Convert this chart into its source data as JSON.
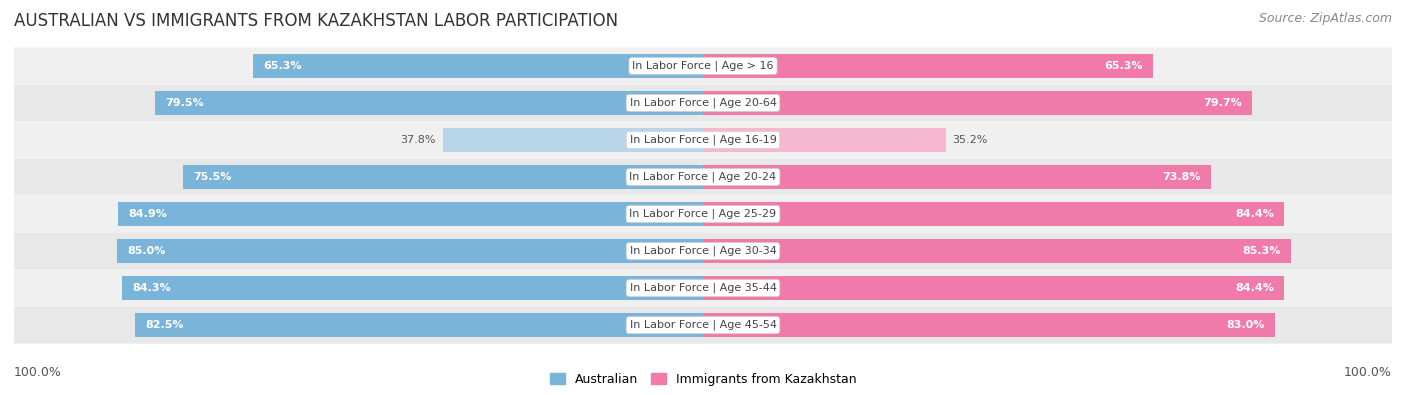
{
  "title": "AUSTRALIAN VS IMMIGRANTS FROM KAZAKHSTAN LABOR PARTICIPATION",
  "source": "Source: ZipAtlas.com",
  "categories": [
    "In Labor Force | Age > 16",
    "In Labor Force | Age 20-64",
    "In Labor Force | Age 16-19",
    "In Labor Force | Age 20-24",
    "In Labor Force | Age 25-29",
    "In Labor Force | Age 30-34",
    "In Labor Force | Age 35-44",
    "In Labor Force | Age 45-54"
  ],
  "australian": [
    65.3,
    79.5,
    37.8,
    75.5,
    84.9,
    85.0,
    84.3,
    82.5
  ],
  "kazakhstan": [
    65.3,
    79.7,
    35.2,
    73.8,
    84.4,
    85.3,
    84.4,
    83.0
  ],
  "australian_color": "#7ab4d8",
  "australian_color_light": "#b8d5ea",
  "kazakhstan_color": "#f07aaa",
  "kazakhstan_color_light": "#f5b8d0",
  "row_bg_even": "#f0f0f0",
  "row_bg_odd": "#e8e8e8",
  "max_value": 100.0,
  "legend_australian": "Australian",
  "legend_kazakhstan": "Immigrants from Kazakhstan",
  "title_fontsize": 12,
  "source_fontsize": 9,
  "label_fontsize": 8,
  "bar_label_fontsize": 8,
  "background_color": "#ffffff"
}
